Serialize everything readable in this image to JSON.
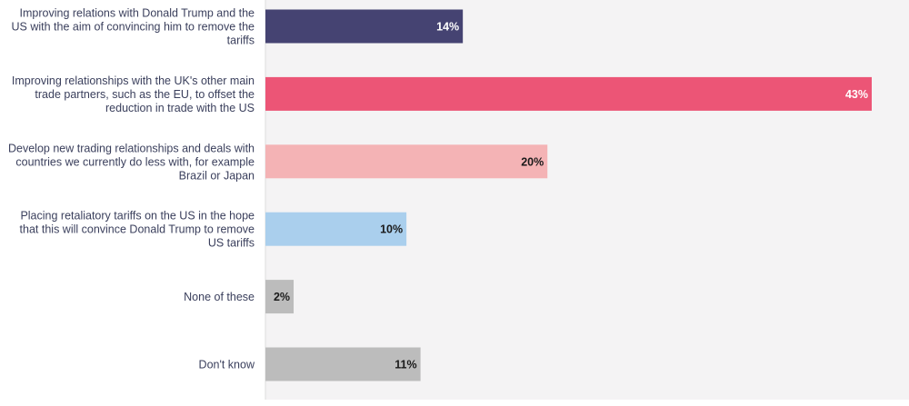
{
  "chart_data": {
    "type": "bar",
    "orientation": "horizontal",
    "categories": [
      "Improving relations with Donald Trump and the US with the aim of convincing him to remove the tariffs",
      "Improving relationships with the UK's other main trade partners, such as the EU, to offset the reduction in trade with the US",
      "Develop new trading relationships and deals with countries we currently do less with, for example Brazil or Japan",
      "Placing retaliatory tariffs on the US in the hope that this will convince Donald Trump to remove US tariffs",
      "None of these",
      "Don't know"
    ],
    "category_lines": [
      [
        "Improving relations with Donald Trump and the",
        "US with the aim of convincing him to remove the",
        "tariffs"
      ],
      [
        "Improving relationships with the UK's other main",
        "trade partners, such as the EU, to offset the",
        "reduction in trade with the US"
      ],
      [
        "Develop new trading relationships and deals with",
        "countries we currently do less with, for example",
        "Brazil or Japan"
      ],
      [
        "Placing retaliatory tariffs on the US in the hope",
        "that this will convince Donald Trump to remove",
        "US tariffs"
      ],
      [
        "None of these"
      ],
      [
        "Don't know"
      ]
    ],
    "values": [
      14,
      43,
      20,
      10,
      2,
      11
    ],
    "value_labels": [
      "14%",
      "43%",
      "20%",
      "10%",
      "2%",
      "11%"
    ],
    "colors": [
      "#454372",
      "#ec5576",
      "#f4b3b5",
      "#aacfed",
      "#bcbcbc",
      "#bcbcbc"
    ],
    "label_colors": [
      "#ffffff",
      "#ffffff",
      "#1a1a1a",
      "#1a1a1a",
      "#1a1a1a",
      "#1a1a1a"
    ],
    "xlim": [
      0,
      43
    ],
    "grid": false,
    "plot_background": "#f4f3f4",
    "title": "",
    "xlabel": "",
    "ylabel": ""
  }
}
